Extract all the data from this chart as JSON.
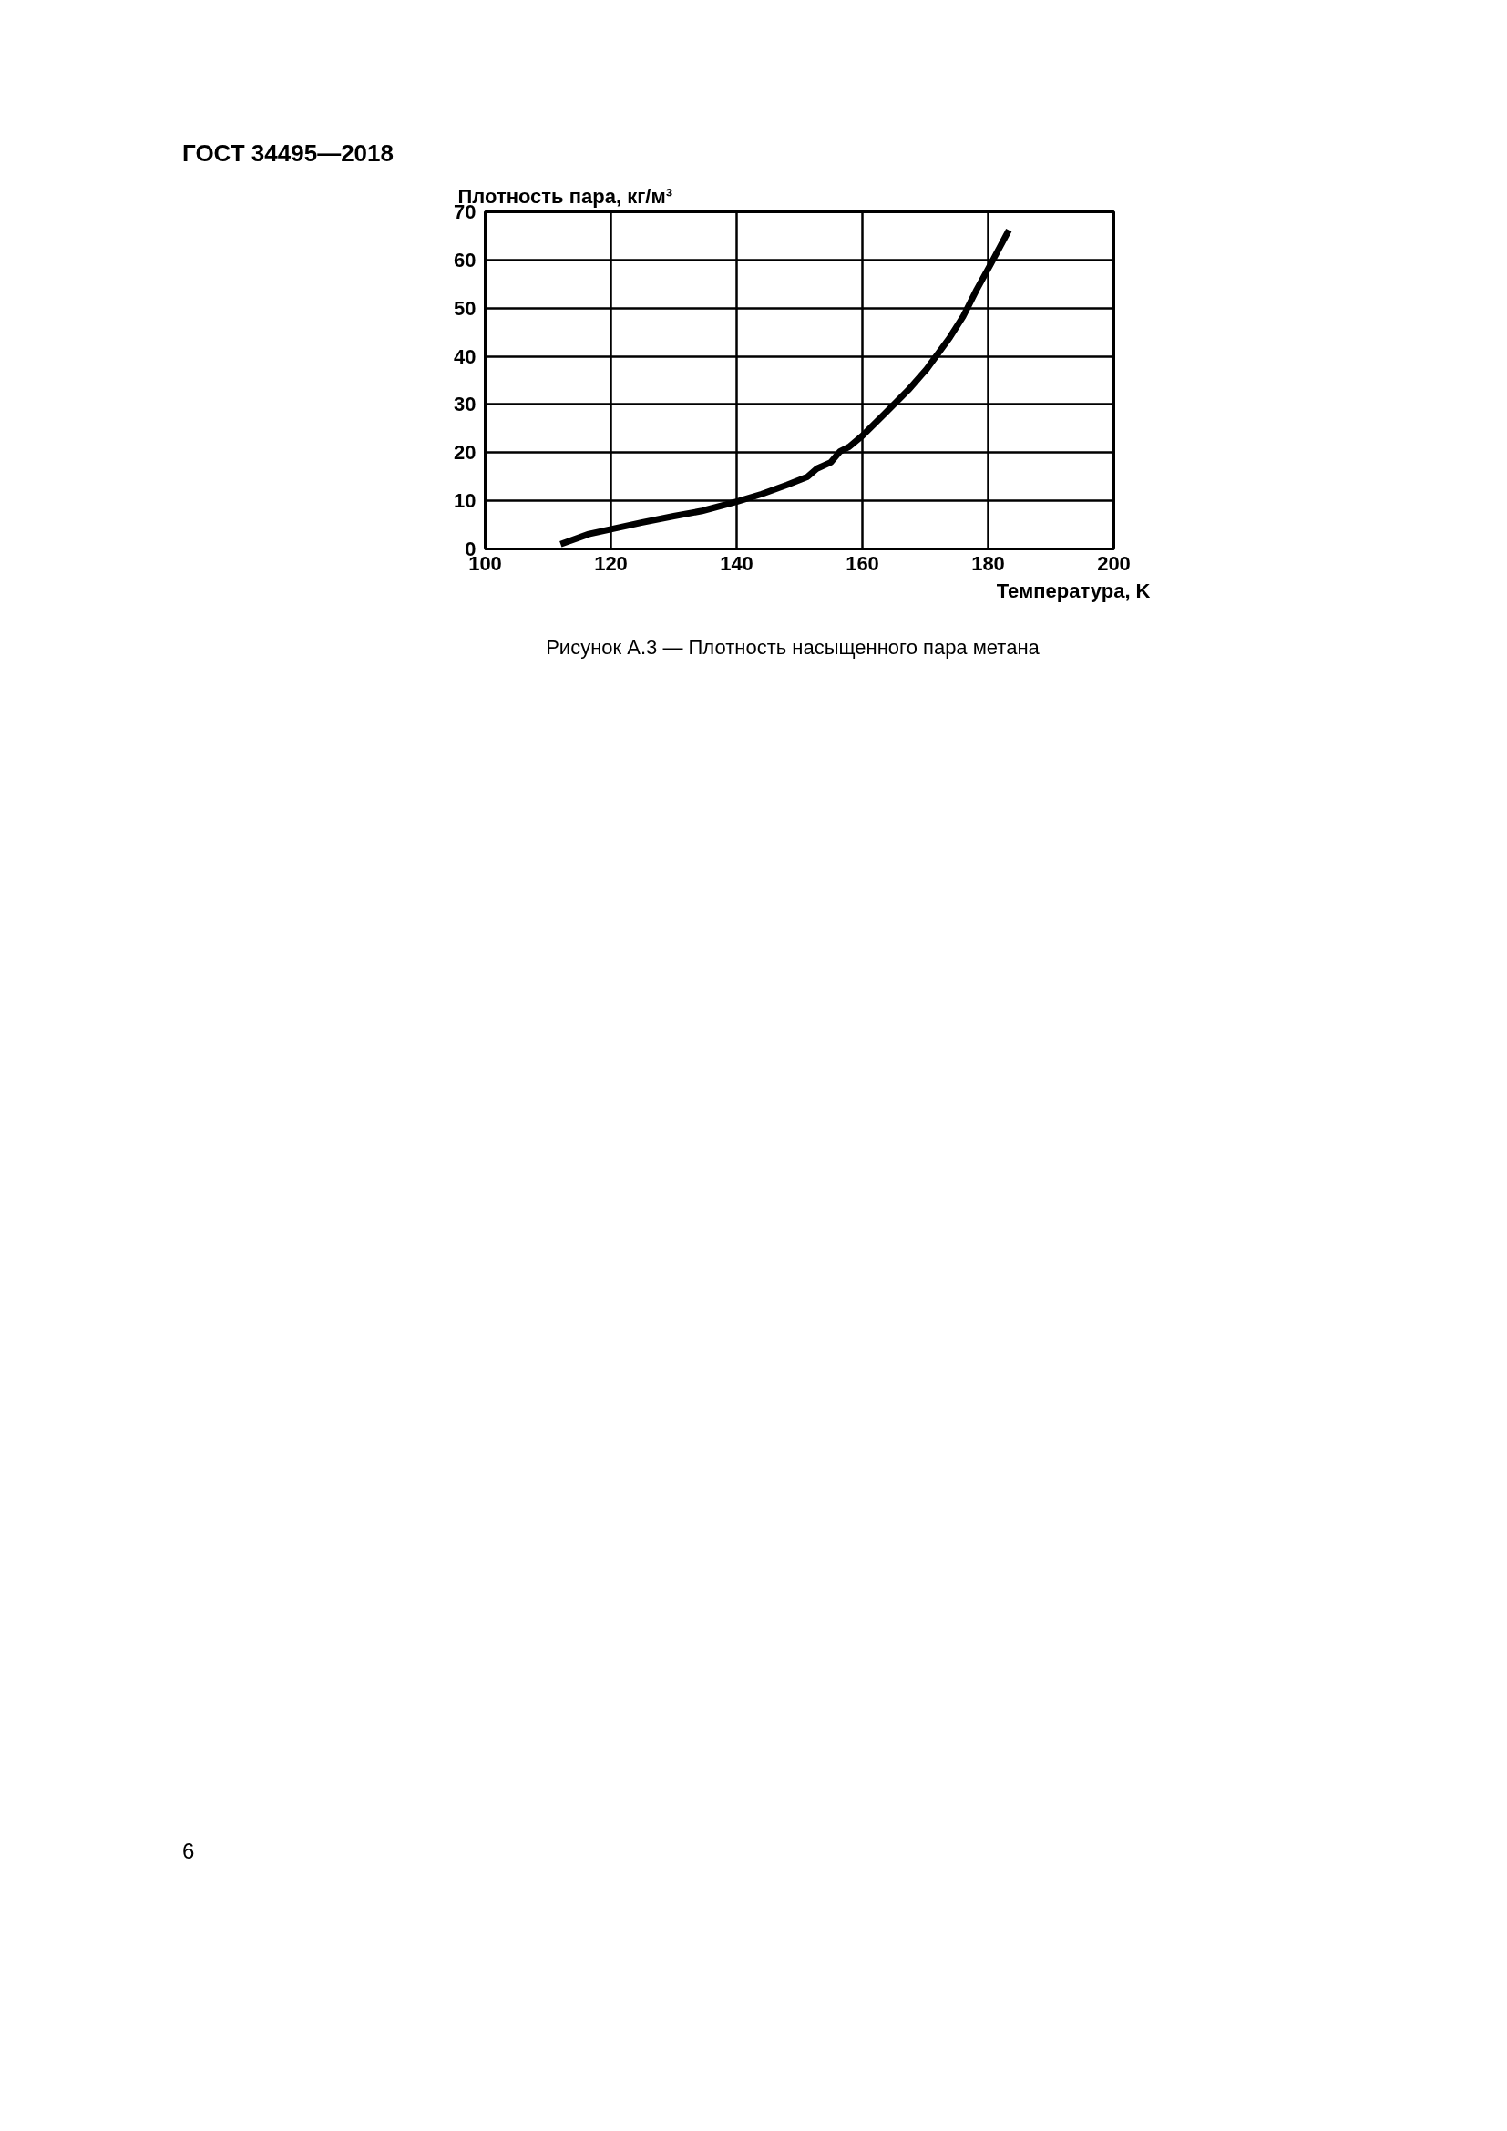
{
  "chart_data": {
    "type": "line",
    "title": "Рисунок А.3 — Плотность насыщенного пара метана",
    "ylabel": "Плотность пара, кг/м³",
    "xlabel": "Температура, K",
    "annotations": [
      "ГОСТ 34495—2018",
      "6"
    ],
    "x": [
      112,
      116.5,
      120,
      125,
      130,
      134.5,
      140,
      144,
      148,
      151.3,
      152.8,
      155,
      156.4,
      157.9,
      160,
      163.7,
      167.3,
      170.2,
      173.9,
      176,
      178.2,
      180.4,
      183.3
    ],
    "series": [
      {
        "color": "#000000",
        "values": [
          1,
          3.1,
          4.1,
          5.5,
          6.8,
          7.9,
          9.8,
          11.4,
          13.3,
          15,
          16.7,
          18,
          20.2,
          21.2,
          23.5,
          28.3,
          33,
          37.3,
          43.9,
          48.2,
          53.9,
          59.1,
          66.2
        ]
      }
    ],
    "xlim": [
      100,
      200
    ],
    "xticks": [
      100,
      120,
      140,
      160,
      180,
      200
    ],
    "ylim": [
      0,
      70
    ],
    "yticks": [
      0,
      10,
      20,
      30,
      40,
      50,
      60,
      70
    ],
    "grid": true,
    "marker": "none",
    "line_style": "solid"
  }
}
